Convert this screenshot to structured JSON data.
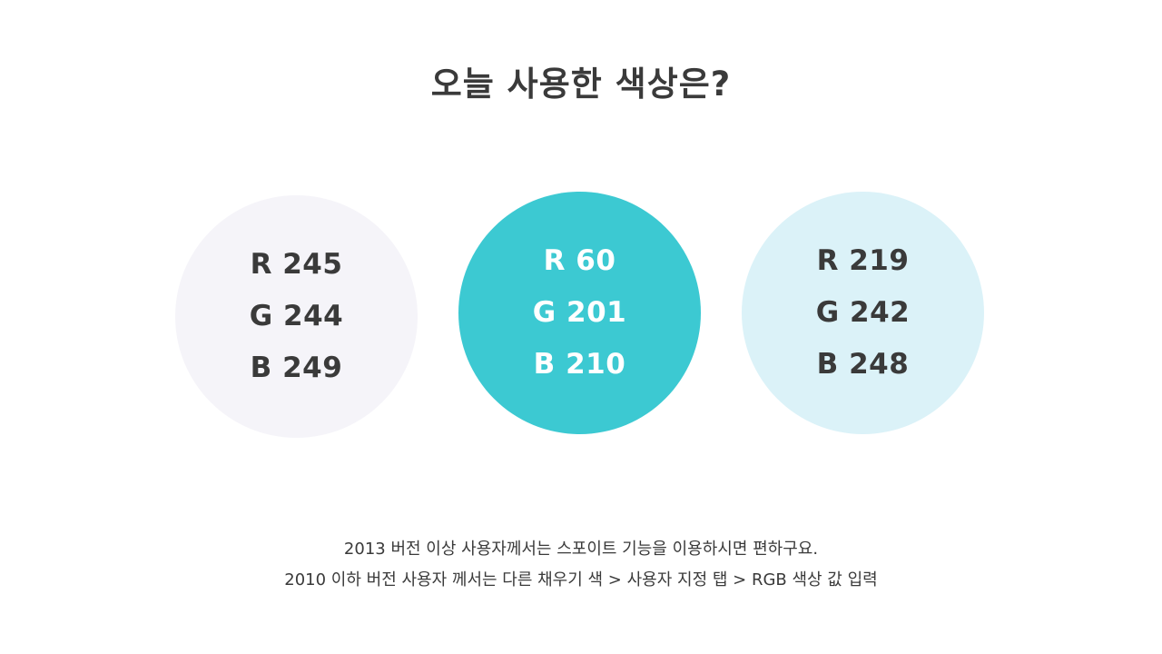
{
  "title": "오늘 사용한 색상은?",
  "swatches": [
    {
      "r": "R 245",
      "g": "G 244",
      "b": "B 249",
      "color": "#f5f4f9",
      "text_color": "#3a3a3a"
    },
    {
      "r": "R 60",
      "g": "G 201",
      "b": "B 210",
      "color": "#3cc9d2",
      "text_color": "#ffffff"
    },
    {
      "r": "R 219",
      "g": "G 242",
      "b": "B 248",
      "color": "#dbf2f8",
      "text_color": "#3a3a3a"
    }
  ],
  "notes": {
    "line1": "2013 버전 이상 사용자께서는 스포이트 기능을 이용하시면 편하구요.",
    "line2": "2010 이하 버전 사용자 께서는 다른 채우기 색 > 사용자 지정 탭 > RGB 색상 값 입력"
  }
}
